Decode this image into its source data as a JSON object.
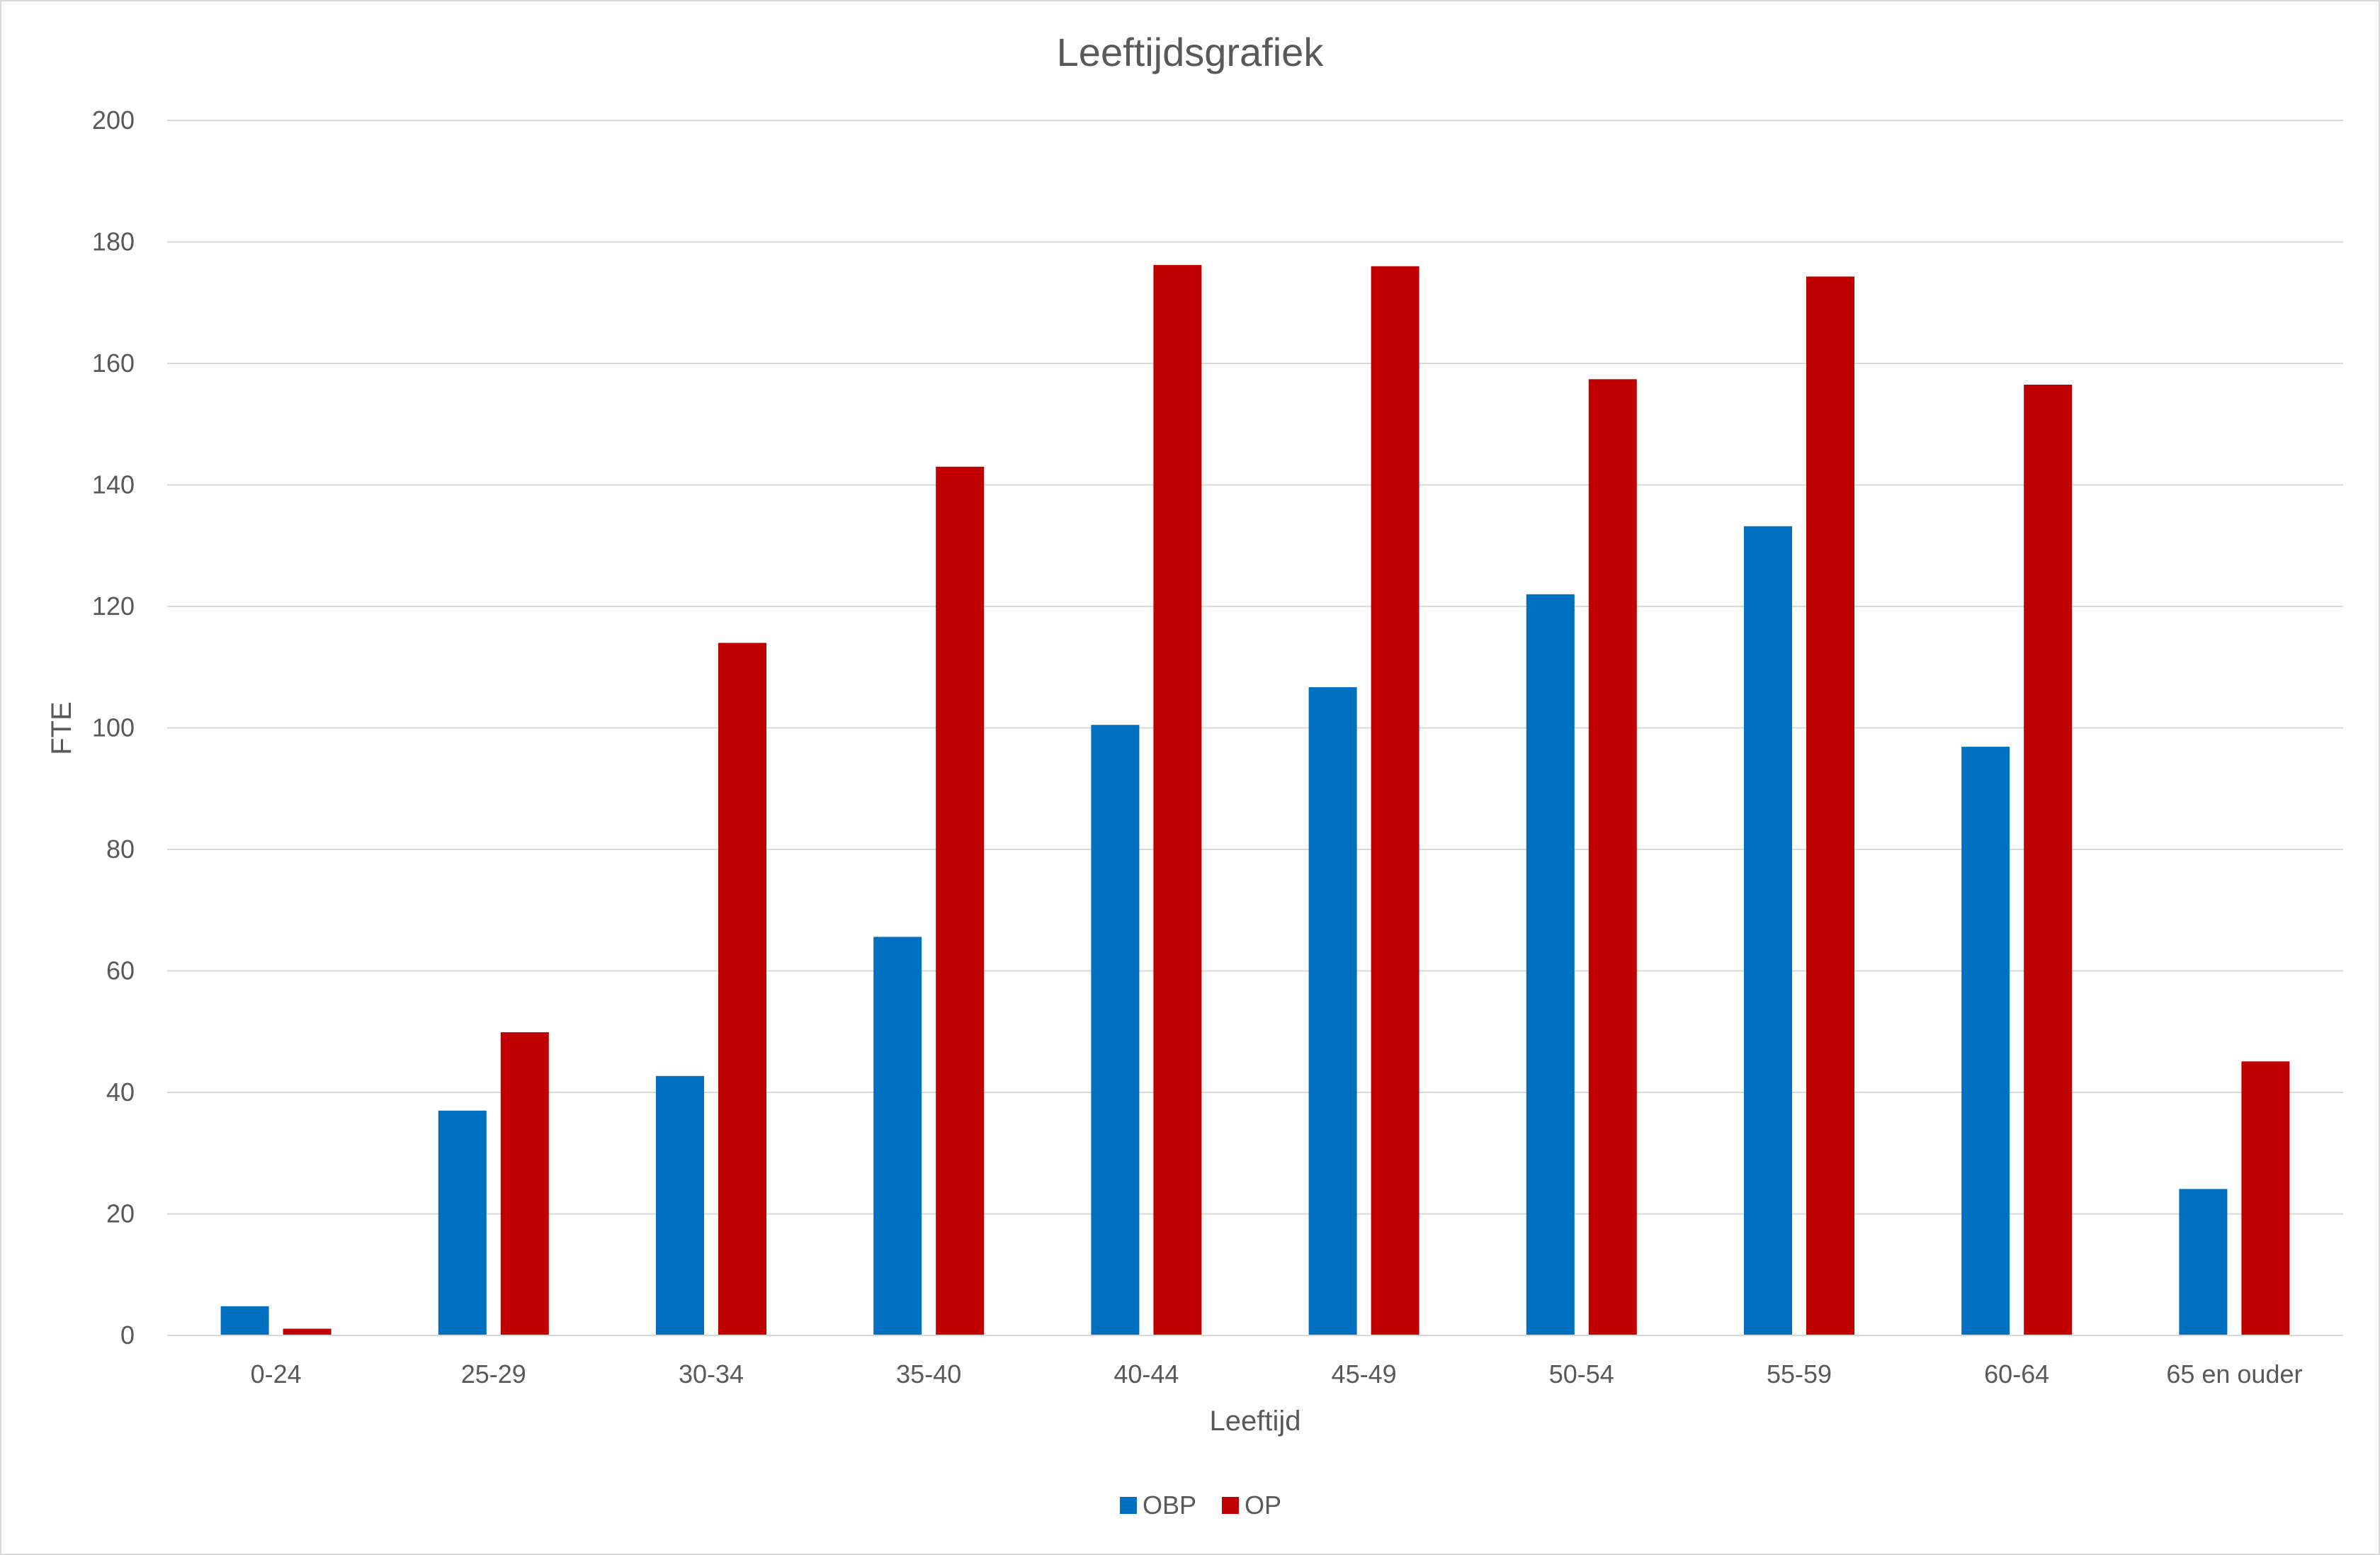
{
  "chart_data": {
    "type": "bar",
    "title": "Leeftijdsgrafiek",
    "xlabel": "Leeftijd",
    "ylabel": "FTE",
    "ylim": [
      0,
      200
    ],
    "yticks": [
      0,
      20,
      40,
      60,
      80,
      100,
      120,
      140,
      160,
      180,
      200
    ],
    "grid": true,
    "legend_position": "bottom",
    "categories": [
      "0-24",
      "25-29",
      "30-34",
      "35-40",
      "40-44",
      "45-49",
      "50-54",
      "55-59",
      "60-64",
      "65 en ouder"
    ],
    "series": [
      {
        "name": "OBP",
        "color": "#0070C0",
        "values": [
          4.8,
          37,
          42.7,
          65.6,
          100.5,
          106.7,
          122,
          133.2,
          96.9,
          24.1
        ]
      },
      {
        "name": "OP",
        "color": "#C00000",
        "values": [
          1.1,
          49.9,
          114,
          143,
          176.2,
          176,
          157.4,
          174.3,
          156.5,
          45.1
        ]
      }
    ]
  }
}
